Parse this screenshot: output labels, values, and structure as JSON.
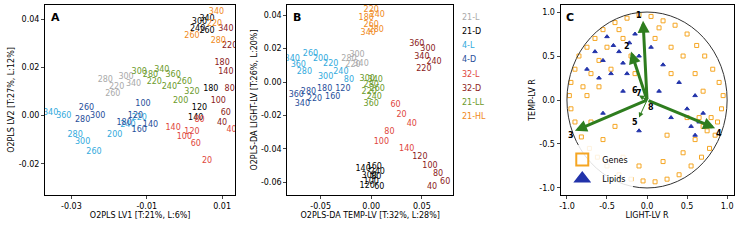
{
  "chart_data": [
    {
      "type": "scatter",
      "panel": "A",
      "x_label": "O2PLS LV1 [T:21%, L:6%]",
      "y_label": "O2PLS LV2 [T:27%, L:12%]",
      "xlim": [
        -0.037,
        0.0135
      ],
      "ylim": [
        -0.033,
        0.046
      ],
      "xticks": [
        -0.03,
        -0.01,
        0.01
      ],
      "yticks": [
        -0.02,
        {
          "value": 0,
          "label": "0.00"
        },
        0.02,
        0.04
      ],
      "series": [
        {
          "name": "21-L",
          "color": "#aaaaaa",
          "marker": "text",
          "x": [
            -0.021,
            -0.018,
            -0.0155,
            -0.0135,
            -0.019
          ],
          "y": [
            0.015,
            0.012,
            0.016,
            0.013,
            0.009
          ],
          "labels": [
            280,
            220,
            300,
            340,
            260
          ]
        },
        {
          "name": "21-D",
          "color": "#000000",
          "marker": "text",
          "x": [
            0.004,
            0.006,
            0.0035,
            0.006,
            0.007,
            0.003,
            0.004
          ],
          "y": [
            0.039,
            0.04,
            0.036,
            0.035,
            0.011,
            -0.001,
            0.003
          ],
          "labels": [
            300,
            340,
            240,
            260,
            180,
            140,
            120
          ]
        },
        {
          "name": "4-L",
          "color": "#33aadd",
          "marker": "text",
          "x": [
            -0.0355,
            -0.032,
            -0.029,
            -0.027,
            -0.0185,
            -0.015,
            -0.012,
            -0.024
          ],
          "y": [
            0.001,
            0.0,
            -0.008,
            -0.011,
            -0.008,
            -0.004,
            -0.001,
            -0.015
          ],
          "labels": [
            340,
            360,
            280,
            300,
            200,
            240,
            220,
            260
          ]
        },
        {
          "name": "4-D",
          "color": "#1f4e9a",
          "marker": "text",
          "x": [
            -0.026,
            -0.027,
            -0.023,
            -0.016,
            -0.012,
            -0.009,
            -0.013,
            -0.011
          ],
          "y": [
            0.003,
            -0.002,
            0.0,
            -0.003,
            -0.006,
            -0.004,
            0.0,
            0.005
          ],
          "labels": [
            260,
            280,
            300,
            180,
            160,
            140,
            120,
            100
          ]
        },
        {
          "name": "32-L",
          "color": "#e0463c",
          "marker": "text",
          "x": [
            0.0125,
            0.006,
            0.003,
            0.0,
            0.002,
            -0.003,
            0.004
          ],
          "y": [
            -0.006,
            -0.019,
            -0.012,
            -0.009,
            -0.007,
            -0.005,
            -0.002
          ],
          "labels": [
            40,
            20,
            60,
            100,
            120,
            140,
            80
          ]
        },
        {
          "name": "32-D",
          "color": "#8b1a1a",
          "marker": "text",
          "x": [
            0.011,
            0.012,
            0.01,
            0.011,
            0.012,
            0.009,
            0.011,
            0.01
          ],
          "y": [
            0.036,
            0.029,
            0.022,
            0.018,
            0.011,
            0.006,
            0.001,
            -0.003
          ],
          "labels": [
            340,
            220,
            180,
            140,
            80,
            100,
            60,
            40
          ]
        },
        {
          "name": "21-LL",
          "color": "#6b9a2a",
          "marker": "text",
          "x": [
            -0.012,
            -0.009,
            -0.006,
            -0.003,
            -0.008,
            -0.004,
            0.0,
            -0.001,
            0.002
          ],
          "y": [
            0.018,
            0.017,
            0.019,
            0.017,
            0.014,
            0.012,
            0.014,
            0.006,
            0.01
          ],
          "labels": [
            300,
            280,
            340,
            360,
            220,
            240,
            260,
            200,
            320
          ]
        },
        {
          "name": "21-HL",
          "color": "#f08a1c",
          "marker": "text",
          "x": [
            0.0085,
            0.008,
            0.002,
            0.009
          ],
          "y": [
            0.043,
            0.038,
            0.033,
            0.031
          ],
          "labels": [
            340,
            220,
            260,
            280
          ]
        }
      ]
    },
    {
      "type": "scatter",
      "panel": "B",
      "x_label": "O2PLS-DA TEMP-LV [T:32%, L:28%]",
      "y_label": "O2PLS-DA LIGHT-LV [T:26%, L:20%]",
      "xlim": [
        -0.083,
        0.081
      ],
      "ylim": [
        -0.0675,
        0.046
      ],
      "xticks": [
        -0.05,
        {
          "value": 0,
          "label": "0.00"
        },
        0.05
      ],
      "yticks": [
        -0.06,
        -0.04,
        -0.02,
        {
          "value": 0,
          "label": "0.00"
        },
        0.02,
        0.04
      ],
      "series": [
        {
          "name": "21-L",
          "color": "#aaaaaa",
          "marker": "text",
          "x": [
            -0.022,
            -0.018,
            -0.014,
            -0.01
          ],
          "y": [
            0.014,
            0.01,
            0.016,
            0.011
          ],
          "labels": [
            280,
            220,
            300,
            340
          ]
        },
        {
          "name": "21-D",
          "color": "#000000",
          "marker": "text",
          "x": [
            -0.008,
            0.0,
            0.005,
            0.008,
            -0.004,
            0.003,
            -0.002,
            0.006
          ],
          "y": [
            -0.052,
            -0.06,
            -0.057,
            -0.063,
            -0.062,
            -0.051,
            -0.056,
            -0.054
          ],
          "labels": [
            140,
            100,
            80,
            60,
            120,
            160,
            300,
            240
          ]
        },
        {
          "name": "4-L",
          "color": "#33aadd",
          "marker": "text",
          "x": [
            -0.078,
            -0.072,
            -0.066,
            -0.06,
            -0.05,
            -0.04,
            -0.03,
            -0.045,
            -0.022
          ],
          "y": [
            0.014,
            0.01,
            0.006,
            0.017,
            0.014,
            0.011,
            0.006,
            0.003,
            0.001
          ],
          "labels": [
            340,
            360,
            280,
            260,
            200,
            220,
            240,
            300,
            80
          ]
        },
        {
          "name": "4-D",
          "color": "#1f4e9a",
          "marker": "text",
          "x": [
            -0.074,
            -0.068,
            -0.062,
            -0.056,
            -0.046,
            -0.038,
            -0.028
          ],
          "y": [
            -0.008,
            -0.013,
            -0.006,
            -0.01,
            -0.004,
            -0.009,
            -0.004
          ],
          "labels": [
            360,
            340,
            280,
            220,
            180,
            160,
            120
          ]
        },
        {
          "name": "32-L",
          "color": "#e0463c",
          "marker": "text",
          "x": [
            0.03,
            0.04,
            0.024,
            0.018,
            0.01,
            0.035
          ],
          "y": [
            -0.02,
            -0.025,
            -0.014,
            -0.03,
            -0.036,
            -0.04
          ],
          "labels": [
            20,
            40,
            60,
            80,
            100,
            140
          ]
        },
        {
          "name": "32-D",
          "color": "#8b1a1a",
          "marker": "text",
          "x": [
            0.045,
            0.056,
            0.05,
            0.062,
            0.052,
            0.048,
            0.058,
            0.066,
            0.073,
            0.06
          ],
          "y": [
            0.023,
            0.02,
            0.015,
            0.012,
            0.008,
            -0.045,
            -0.05,
            -0.055,
            -0.06,
            -0.063
          ],
          "labels": [
            360,
            300,
            340,
            240,
            220,
            120,
            100,
            80,
            60,
            40
          ]
        },
        {
          "name": "21-LL",
          "color": "#6b9a2a",
          "marker": "text",
          "x": [
            -0.004,
            0.0,
            0.004,
            -0.002,
            0.003,
            0.0,
            0.006
          ],
          "y": [
            0.002,
            -0.002,
            0.001,
            -0.006,
            -0.009,
            -0.013,
            -0.004
          ],
          "labels": [
            300,
            280,
            340,
            220,
            240,
            360,
            260
          ]
        },
        {
          "name": "21-HL",
          "color": "#f08a1c",
          "marker": "text",
          "x": [
            0.0,
            0.006,
            -0.005,
            0.0,
            0.005,
            -0.003
          ],
          "y": [
            0.043,
            0.04,
            0.038,
            0.034,
            0.031,
            0.029
          ],
          "labels": [
            220,
            240,
            180,
            260,
            280,
            340
          ]
        }
      ]
    },
    {
      "type": "scatter",
      "panel": "C",
      "x_label": "LIGHT-LV R",
      "y_label": "TEMP-LV R",
      "xlim": [
        -1.08,
        1.08
      ],
      "ylim": [
        -1.08,
        1.08
      ],
      "xticks": [
        {
          "value": -1,
          "label": "-1.0"
        },
        -0.5,
        {
          "value": 0,
          "label": "0.0"
        },
        0.5,
        {
          "value": 1,
          "label": "1.0"
        }
      ],
      "yticks": [
        {
          "value": -1,
          "label": "-1.0"
        },
        -0.5,
        {
          "value": 0,
          "label": "0.0"
        },
        0.5,
        {
          "value": 1,
          "label": "1.0"
        }
      ],
      "legend": "bottom left",
      "circle": {
        "r": 1
      },
      "series": [
        {
          "name": "Genes",
          "color": "#f5a623",
          "marker": "square-open",
          "x": [
            -0.95,
            -0.9,
            -0.85,
            -0.75,
            -0.65,
            -0.55,
            -0.4,
            -0.25,
            -0.1,
            0.05,
            0.2,
            0.35,
            0.5,
            0.62,
            0.72,
            0.82,
            0.9,
            0.95,
            0.93,
            0.88,
            0.85,
            0.78,
            0.68,
            0.55,
            0.4,
            0.25,
            0.1,
            -0.05,
            -0.2,
            -0.35,
            -0.5,
            -0.62,
            -0.72,
            -0.82,
            -0.9,
            -0.95,
            -0.97,
            -0.7,
            -0.6,
            -0.5,
            -0.3,
            -0.45,
            -0.2,
            0.1,
            0.3,
            0.45,
            0.6,
            0.7,
            0.65,
            0.6,
            0.45,
            0.2,
            -0.1,
            -0.3,
            -0.55,
            -0.7,
            -0.75,
            -0.6,
            0.75,
            0.7,
            0.8,
            -0.8,
            -0.35,
            0.15,
            0.5,
            -0.4,
            0.3,
            -0.15,
            0.25
          ],
          "y": [
            0.2,
            0.35,
            0.5,
            0.6,
            0.7,
            0.8,
            0.88,
            0.93,
            0.97,
            0.95,
            0.9,
            0.85,
            0.75,
            0.62,
            0.5,
            0.35,
            0.2,
            0.05,
            -0.1,
            -0.25,
            -0.4,
            -0.55,
            -0.65,
            -0.75,
            -0.85,
            -0.9,
            -0.93,
            -0.92,
            -0.9,
            -0.85,
            -0.75,
            -0.65,
            -0.55,
            -0.42,
            -0.25,
            -0.1,
            0.05,
            0.3,
            0.45,
            0.6,
            0.7,
            0.35,
            0.5,
            0.7,
            0.6,
            0.5,
            0.3,
            0.1,
            -0.2,
            -0.45,
            -0.6,
            -0.7,
            -0.75,
            -0.65,
            -0.45,
            -0.25,
            0.05,
            0.15,
            -0.35,
            -0.3,
            -0.2,
            0.15,
            0.8,
            0.82,
            -0.2,
            -0.3,
            0.3,
            0.3,
            -0.4
          ]
        },
        {
          "name": "Lipids",
          "color": "#2233aa",
          "marker": "triangle-up",
          "x": [
            -0.5,
            -0.42,
            -0.35,
            -0.3,
            -0.22,
            -0.15,
            -0.55,
            -0.45,
            -0.25,
            -0.1,
            0.05,
            -0.65,
            -0.6,
            0.55,
            0.65,
            0.6,
            0.5,
            0.7,
            0.3,
            0.15,
            -0.3,
            -0.55,
            0.2,
            0.4,
            -0.1,
            0.6,
            -0.75
          ],
          "y": [
            0.72,
            0.62,
            0.55,
            0.42,
            0.65,
            0.75,
            0.45,
            0.3,
            0.3,
            0.5,
            0.6,
            0.55,
            0.25,
            -0.3,
            -0.25,
            -0.4,
            -0.1,
            -0.15,
            -0.2,
            0.1,
            0.1,
            -0.15,
            0.4,
            0.2,
            -0.35,
            0.05,
            0.35
          ]
        }
      ],
      "vectors": {
        "color": "#2e7d1e",
        "labels": [
          "1",
          "2",
          "3",
          "4",
          "5",
          "6",
          "7",
          "8"
        ],
        "x": [
          -0.05,
          -0.2,
          -0.9,
          0.85,
          -0.1,
          -0.1,
          -0.05,
          0.0
        ],
        "y": [
          0.9,
          0.55,
          -0.35,
          -0.32,
          -0.2,
          0.05,
          0.02,
          -0.03
        ]
      }
    }
  ]
}
